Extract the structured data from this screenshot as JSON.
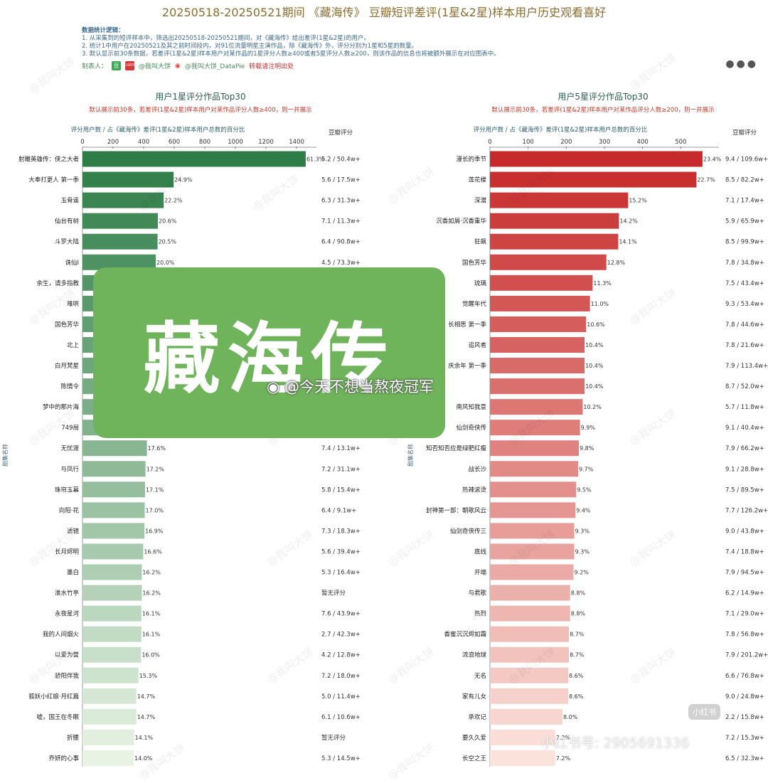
{
  "title": "20250518-20250521期间 《藏海传》 豆瓣短评差评(1星&2星)样本用户历史观看喜好",
  "notes": {
    "heading": "数据统计逻辑：",
    "lines": [
      "1. 从采集到的短评样本中，筛选出20250518-20250521期间，对《藏海传》给出差评(1星&2星)的用户。",
      "2. 统计1中用户在20250521及其之前时间段内，对91位流量明星主演作品，除《藏海传》外，评分分别为1星和5星的数量。",
      "3. 默认显示前30条数据，若差评(1星&2星)样本用户对某作品的1星评分人数≥400或者5星评分人数≥200，则该作品的信息也将被额外展示在对应图表中。"
    ]
  },
  "credits": {
    "label": "制表人：",
    "douban_icon": "豆",
    "red_icon": "100%",
    "handle1": "@我叫大饼",
    "weibo_icon": "weibo-icon",
    "handle2": "@我叫大饼_DataPie",
    "warning": "转载请注明出处"
  },
  "overlay": {
    "text": "藏海传",
    "weibo_handle": "@今天不想当熬夜冠军",
    "xhs_text": "小红书号: 2905691336",
    "xhs_logo": "小红书"
  },
  "watermark_text": "@我叫大饼",
  "colors": {
    "green_dark": "#2e7d47",
    "green_light": "#e8f3e4",
    "red_dark": "#c62a2a",
    "red_light": "#fbe3dc"
  },
  "chart_data": [
    {
      "type": "bar",
      "orientation": "horizontal",
      "title": "用户1星评分作品Top30",
      "subtitle": "默认展示前30条，若差评(1星&2星)样本用户对某作品评分人数≥400，则一并展示",
      "xlabel": "评分用户数 / 占《藏海传》差评(1星&2星)样本用户总数的百分比",
      "ylabel": "剧集名称",
      "right_header": "豆瓣评分",
      "xticks": [
        0,
        200,
        400,
        600,
        800,
        1000,
        1200,
        1400
      ],
      "xlim": [
        0,
        1530
      ],
      "categories": [
        "射雕英雄传：侠之大者",
        "大奉打更人 第一季",
        "玉骨遥",
        "仙台有树",
        "斗罗大陆",
        "诛仙Ⅰ",
        "余生，请多指教",
        "难哄",
        "国色芳华",
        "北上",
        "白月梵星",
        "陈情令",
        "梦中的那片海",
        "749局",
        "无忧渡",
        "与凤行",
        "珠帘玉幕",
        "向阳·花",
        "滤镜",
        "长月烬明",
        "墨白",
        "淮水竹亭",
        "永夜星河",
        "我的人间烟火",
        "以爱为营",
        "骄阳伴我",
        "狐妖小红娘·月红篇",
        "嘘，国王在冬眠",
        "折腰",
        "乔妍的心事"
      ],
      "values": [
        1460,
        596,
        531,
        493,
        491,
        479,
        470,
        467,
        463,
        460,
        455,
        450,
        447,
        443,
        421,
        412,
        409,
        407,
        405,
        397,
        388,
        388,
        385,
        385,
        383,
        366,
        352,
        352,
        338,
        335
      ],
      "labels": [
        "61.3%",
        "24.9%",
        "22.2%",
        "20.6%",
        "20.5%",
        "20.0%",
        "",
        "",
        "",
        "",
        "",
        "",
        "",
        "",
        "17.6%",
        "17.2%",
        "17.1%",
        "17.0%",
        "16.9%",
        "16.6%",
        "16.2%",
        "16.2%",
        "16.1%",
        "16.1%",
        "16.0%",
        "15.3%",
        "14.7%",
        "14.7%",
        "14.1%",
        "14.0%"
      ],
      "scores": [
        "5.2 / 50.4w+",
        "5.6 / 17.5w+",
        "6.3 / 31.3w+",
        "7.1 / 11.3w+",
        "6.4 / 90.8w+",
        "4.5 / 73.3w+",
        "",
        "",
        "",
        "",
        "",
        "",
        "",
        "",
        "7.4 / 13.1w+",
        "7.2 / 31.1w+",
        "5.8 / 15.4w+",
        "6.4 / 9.1w+",
        "7.3 / 18.3w+",
        "5.6 / 39.4w+",
        "5.3 / 16.4w+",
        "暂无评分",
        "7.6 / 43.9w+",
        "2.7 / 42.3w+",
        "4.2 / 12.8w+",
        "7.2 / 18.0w+",
        "5.0 / 11.4w+",
        "6.1 / 10.6w+",
        "暂无评分",
        "5.3 / 14.5w+"
      ]
    },
    {
      "type": "bar",
      "orientation": "horizontal",
      "title": "用户5星评分作品Top30",
      "subtitle": "默认展示前30条，若差评(1星&2星)样本用户对某作品评分人数≥200，则一并展示",
      "xlabel": "评分用户数 / 占《藏海传》差评(1星&2星)样本用户总数的百分比",
      "ylabel": "剧集名称",
      "right_header": "豆瓣评分",
      "xticks": [
        0,
        100,
        200,
        300,
        400,
        500
      ],
      "xlim": [
        0,
        600
      ],
      "categories": [
        "漫长的季节",
        "莲花楼",
        "深潜",
        "沉香如屑·沉香重华",
        "狂飙",
        "国色芳华",
        "琉璃",
        "觉醒年代",
        "长相思 第一季",
        "追风者",
        "庆余年 第一季",
        "",
        "南风知我意",
        "仙剑奇侠传",
        "知否知否应是绿肥红瘦",
        "战长沙",
        "热辣滚烫",
        "封神第一部：朝歌风云",
        "仙剑奇侠传三",
        "底线",
        "开端",
        "与君歌",
        "热烈",
        "香蜜沉沉烬如霜",
        "流浪地球",
        "无名",
        "家有儿女",
        "承欢记",
        "要久久爱",
        "长空之王"
      ],
      "values": [
        557,
        541,
        362,
        338,
        336,
        305,
        269,
        262,
        252,
        248,
        248,
        248,
        243,
        236,
        233,
        231,
        226,
        224,
        221,
        221,
        219,
        210,
        210,
        207,
        207,
        205,
        205,
        190,
        171,
        171
      ],
      "labels": [
        "23.4%",
        "22.7%",
        "15.2%",
        "14.2%",
        "14.1%",
        "12.8%",
        "11.3%",
        "11.0%",
        "10.6%",
        "10.4%",
        "10.4%",
        "10.4%",
        "10.2%",
        "9.9%",
        "9.8%",
        "9.7%",
        "9.5%",
        "9.4%",
        "9.3%",
        "9.3%",
        "9.2%",
        "8.8%",
        "8.8%",
        "8.7%",
        "8.7%",
        "8.6%",
        "8.6%",
        "8.0%",
        "7.2%",
        "7.2%"
      ],
      "scores": [
        "9.4 / 109.6w+",
        "8.5 / 82.2w+",
        "7.1 / 17.4w+",
        "5.9 / 65.9w+",
        "8.5 / 99.9w+",
        "7.8 / 34.8w+",
        "7.5 / 43.4w+",
        "9.3 / 53.4w+",
        "7.8 / 44.6w+",
        "7.8 / 21.6w+",
        "7.9 / 113.4w+",
        "8.7 / 52.0w+",
        "5.7 / 11.8w+",
        "9.1 / 40.4w+",
        "7.9 / 66.2w+",
        "9.1 / 28.8w+",
        "7.5 / 89.5w+",
        "7.7 / 126.2w+",
        "9.0 / 43.8w+",
        "7.4 / 18.8w+",
        "7.9 / 94.5w+",
        "6.2 / 14.9w+",
        "7.1 / 29.0w+",
        "7.8 / 56.8w+",
        "7.9 / 201.2w+",
        "6.6 / 76.8w+",
        "9.0 / 24.8w+",
        "2.2 / 15.8w+",
        "7.2 / 15.3w+",
        "6.5 / 32.3w+"
      ]
    }
  ]
}
